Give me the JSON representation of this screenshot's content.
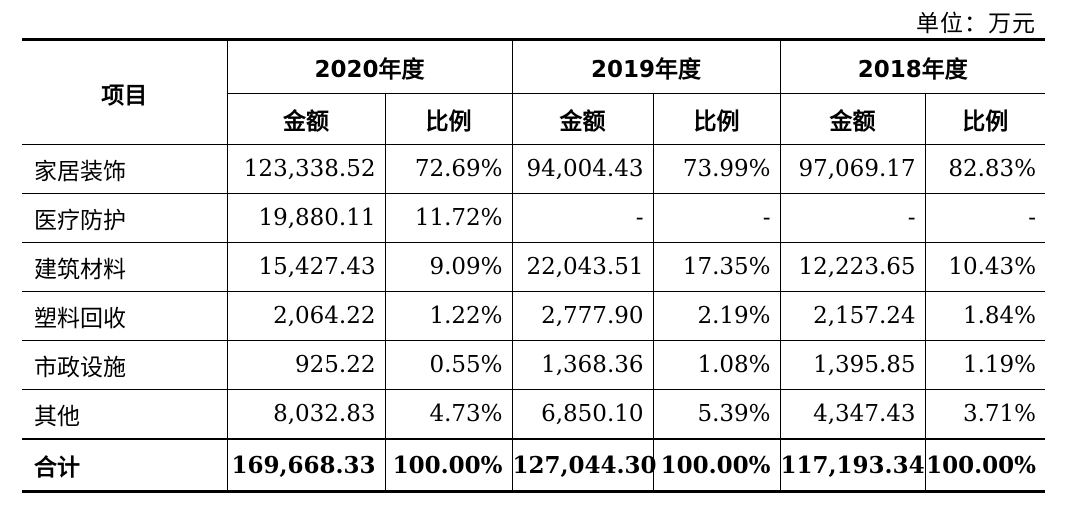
{
  "unit_label": "单位：万元",
  "header": {
    "item_label": "项目",
    "years": [
      "2020年度",
      "2019年度",
      "2018年度"
    ],
    "amount_label": "金额",
    "ratio_label": "比例"
  },
  "rows": [
    {
      "name": "家居装饰",
      "v": [
        "123,338.52",
        "72.69%",
        "94,004.43",
        "73.99%",
        "97,069.17",
        "82.83%"
      ]
    },
    {
      "name": "医疗防护",
      "v": [
        "19,880.11",
        "11.72%",
        "-",
        "-",
        "-",
        "-"
      ]
    },
    {
      "name": "建筑材料",
      "v": [
        "15,427.43",
        "9.09%",
        "22,043.51",
        "17.35%",
        "12,223.65",
        "10.43%"
      ]
    },
    {
      "name": "塑料回收",
      "v": [
        "2,064.22",
        "1.22%",
        "2,777.90",
        "2.19%",
        "2,157.24",
        "1.84%"
      ]
    },
    {
      "name": "市政设施",
      "v": [
        "925.22",
        "0.55%",
        "1,368.36",
        "1.08%",
        "1,395.85",
        "1.19%"
      ]
    },
    {
      "name": "其他",
      "v": [
        "8,032.83",
        "4.73%",
        "6,850.10",
        "5.39%",
        "4,347.43",
        "3.71%"
      ]
    }
  ],
  "total": {
    "name": "合计",
    "v": [
      "169,668.33",
      "100.00%",
      "127,044.30",
      "100.00%",
      "117,193.34",
      "100.00%"
    ]
  }
}
